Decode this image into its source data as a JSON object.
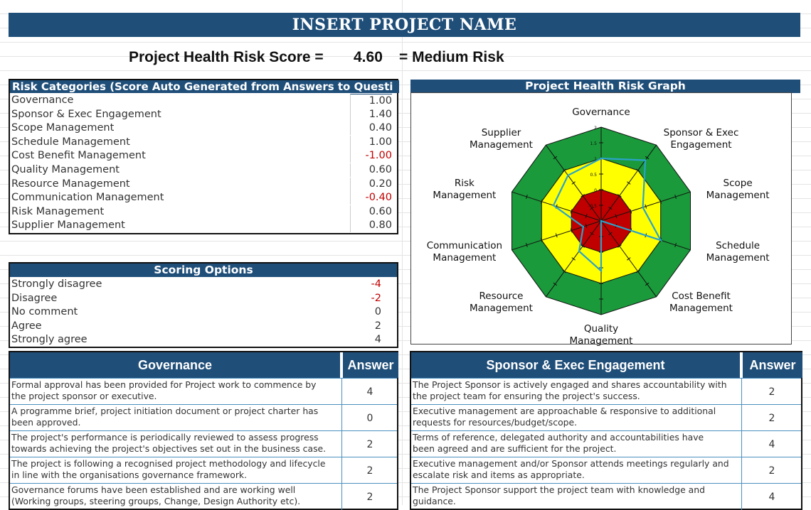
{
  "title": "INSERT PROJECT NAME",
  "score": {
    "label": "Project Health Risk Score =",
    "value": "4.60",
    "result": "= Medium Risk"
  },
  "categories": {
    "header": "Risk Categories (Score Auto Generated from Answers to Questi",
    "items": [
      {
        "name": "Governance",
        "score": "1.00"
      },
      {
        "name": "Sponsor & Exec Engagement",
        "score": "1.40"
      },
      {
        "name": "Scope Management",
        "score": "0.40"
      },
      {
        "name": "Schedule Management",
        "score": "1.00"
      },
      {
        "name": "Cost Benefit Management",
        "score": "-1.00"
      },
      {
        "name": "Quality Management",
        "score": "0.60"
      },
      {
        "name": "Resource Management",
        "score": "0.20"
      },
      {
        "name": "Communication Management",
        "score": "-0.40"
      },
      {
        "name": "Risk Management",
        "score": "0.60"
      },
      {
        "name": "Supplier Management",
        "score": "0.80"
      }
    ]
  },
  "scoring": {
    "header": "Scoring Options",
    "items": [
      {
        "name": "Strongly disagree",
        "value": "-4"
      },
      {
        "name": "Disagree",
        "value": "-2"
      },
      {
        "name": "No comment",
        "value": "0"
      },
      {
        "name": "Agree",
        "value": "2"
      },
      {
        "name": "Strongly agree",
        "value": "4"
      }
    ]
  },
  "graph": {
    "header": "Project Health Risk Graph",
    "axis_labels": [
      [
        "Governance"
      ],
      [
        "Sponsor & Exec",
        "Engagement"
      ],
      [
        "Scope",
        "Management"
      ],
      [
        "Schedule",
        "Management"
      ],
      [
        "Cost Benefit",
        "Management"
      ],
      [
        "Quality",
        "Management"
      ],
      [
        "Resource",
        "Management"
      ],
      [
        "Communication",
        "Management"
      ],
      [
        "Risk",
        "Management"
      ],
      [
        "Supplier",
        "Management"
      ]
    ],
    "tick_labels": [
      "2",
      "1.5",
      "1",
      "0.5",
      "0",
      "-0.5"
    ],
    "colors": {
      "outer": "#1a9a3a",
      "middle": "#ffff00",
      "inner": "#c00000",
      "line": "#2aa3c9"
    }
  },
  "chart_data": {
    "type": "radar",
    "title": "Project Health Risk Graph",
    "categories": [
      "Governance",
      "Sponsor & Exec Engagement",
      "Scope Management",
      "Schedule Management",
      "Cost Benefit Management",
      "Quality Management",
      "Resource Management",
      "Communication Management",
      "Risk Management",
      "Supplier Management"
    ],
    "series": [
      {
        "values": [
          1.0,
          1.4,
          0.4,
          1.0,
          -1.0,
          0.6,
          0.2,
          -0.4,
          0.6,
          0.8
        ]
      }
    ],
    "rlim": [
      -1,
      2
    ],
    "bands": [
      {
        "from": -1,
        "to": 0,
        "color": "#c00000"
      },
      {
        "from": 0,
        "to": 1,
        "color": "#ffff00"
      },
      {
        "from": 1,
        "to": 2,
        "color": "#1a9a3a"
      }
    ]
  },
  "governance": {
    "header": "Governance",
    "answer_header": "Answer",
    "rows": [
      {
        "text": [
          "Formal approval has been provided for Project work to commence by",
          "the project sponsor or executive."
        ],
        "answer": "4"
      },
      {
        "text": [
          "A programme brief, project initiation document or project charter has",
          "been approved."
        ],
        "answer": "0"
      },
      {
        "text": [
          "The project's performance is periodically reviewed to assess progress",
          "towards achieving the project's objectives set out in the business case."
        ],
        "answer": "2"
      },
      {
        "text": [
          "The project is following a recognised project methodology and lifecycle",
          "in line with the organisations governance framework."
        ],
        "answer": "2"
      },
      {
        "text": [
          "Governance forums have been established and are working well",
          "(Working groups, steering groups, Change, Design Authority etc)."
        ],
        "answer": "2"
      }
    ]
  },
  "sponsor": {
    "header": "Sponsor & Exec Engagement",
    "answer_header": "Answer",
    "rows": [
      {
        "text": [
          "The Project Sponsor is actively engaged and shares accountability with",
          "the project team for ensuring the project's success."
        ],
        "answer": "2"
      },
      {
        "text": [
          "Executive management are approachable & responsive to additional",
          "requests for resources/budget/scope."
        ],
        "answer": "2"
      },
      {
        "text": [
          "Terms of reference, delegated authority and accountabilities have",
          "been agreed and are sufficient for the project."
        ],
        "answer": "4"
      },
      {
        "text": [
          "Executive management and/or Sponsor attends meetings regularly and",
          "escalate risk and items as appropriate."
        ],
        "answer": "2"
      },
      {
        "text": [
          "The Project Sponsor support the project team with knowledge and",
          "guidance."
        ],
        "answer": "4"
      }
    ]
  }
}
